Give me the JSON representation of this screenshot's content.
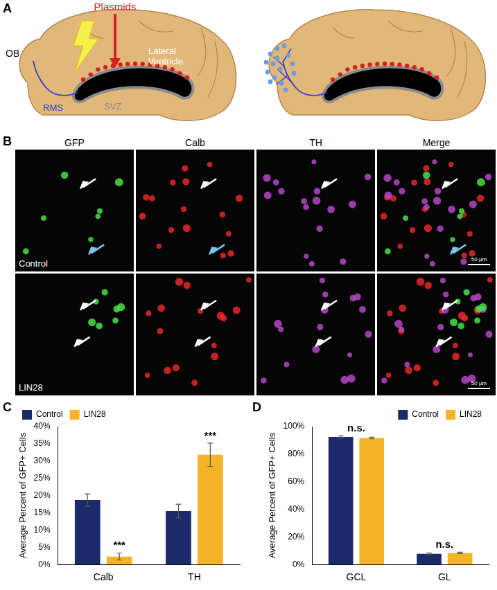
{
  "panel_labels": [
    "A",
    "B",
    "C",
    "D"
  ],
  "diagram": {
    "plasmids": "Plasmids",
    "ob": "OB",
    "rms": "RMS",
    "svz": "SVZ",
    "ventricle": "Lateral Ventricle"
  },
  "micrographs": {
    "columns": [
      "GFP",
      "Calb",
      "TH",
      "Merge"
    ],
    "rows": [
      "Control",
      "LIN28"
    ],
    "scale_bar": "50 µm"
  },
  "chart_data": [
    {
      "type": "bar",
      "categories": [
        "Calb",
        "TH"
      ],
      "series": [
        {
          "name": "Control",
          "color": "#1c2a6b",
          "values": [
            18.7,
            15.5
          ],
          "errors": [
            1.8,
            2.0
          ]
        },
        {
          "name": "LIN28",
          "color": "#f5b427",
          "values": [
            2.3,
            31.8
          ],
          "errors": [
            1.0,
            3.4
          ]
        }
      ],
      "y_label": "Average Percent of GFP+ Cells",
      "ylim": [
        0,
        40
      ],
      "yticks": [
        {
          "value": 0,
          "label": "0%"
        },
        {
          "value": 5,
          "label": "5%"
        },
        {
          "value": 10,
          "label": "10%"
        },
        {
          "value": 15,
          "label": "15%"
        },
        {
          "value": 20,
          "label": "20%"
        },
        {
          "value": 25,
          "label": "25%"
        },
        {
          "value": 30,
          "label": "30%"
        },
        {
          "value": 35,
          "label": "35%"
        },
        {
          "value": 40,
          "label": "40%"
        }
      ],
      "grid": false,
      "legend": "top left",
      "annotations": [
        {
          "category": "Calb",
          "series": "LIN28",
          "text": "***"
        },
        {
          "category": "TH",
          "series": "LIN28",
          "text": "***"
        }
      ]
    },
    {
      "type": "bar",
      "categories": [
        "GCL",
        "GL"
      ],
      "series": [
        {
          "name": "Control",
          "color": "#1c2a6b",
          "values": [
            92.5,
            7.7
          ],
          "errors": [
            0.8,
            0.6
          ]
        },
        {
          "name": "LIN28",
          "color": "#f5b427",
          "values": [
            91.7,
            8.4
          ],
          "errors": [
            0.6,
            0.5
          ]
        }
      ],
      "y_label": "Average Percent of GFP+ Cells",
      "ylim": [
        0,
        100
      ],
      "yticks": [
        {
          "value": 0,
          "label": "0%"
        },
        {
          "value": 20,
          "label": "20%"
        },
        {
          "value": 40,
          "label": "40%"
        },
        {
          "value": 60,
          "label": "60%"
        },
        {
          "value": 80,
          "label": "80%"
        },
        {
          "value": 100,
          "label": "100%"
        }
      ],
      "grid": false,
      "legend": "top right",
      "annotations": [
        {
          "category": "GCL",
          "text": "n.s."
        },
        {
          "category": "GL",
          "text": "n.s."
        }
      ]
    }
  ]
}
